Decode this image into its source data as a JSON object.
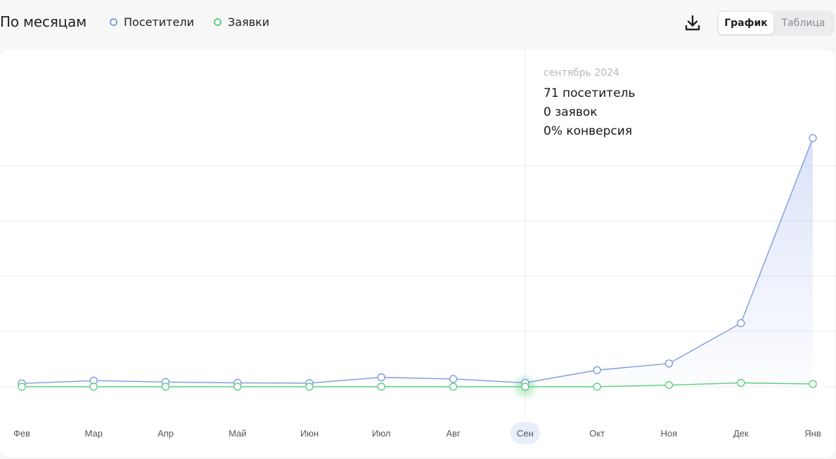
{
  "header": {
    "title": "По месяцам",
    "legend": [
      {
        "label": "Посетители",
        "color": "#7f9cde"
      },
      {
        "label": "Заявки",
        "color": "#5fcf7f"
      }
    ],
    "download_icon": "download-icon",
    "view_toggle": {
      "options": [
        "График",
        "Таблица"
      ],
      "selected": "График"
    }
  },
  "tooltip": {
    "date": "сентябрь 2024",
    "visitors": "71 посетитель",
    "requests": "0 заявок",
    "conversion": "0% конверсия"
  },
  "chart_data": {
    "type": "line",
    "categories": [
      "Фев",
      "Мар",
      "Апр",
      "Май",
      "Июн",
      "Июл",
      "Авг",
      "Сен",
      "Окт",
      "Ноя",
      "Дек",
      "Янв"
    ],
    "highlighted_category": "Сен",
    "series": [
      {
        "name": "Посетители",
        "color": "#7f9cde",
        "values": [
          60,
          110,
          85,
          70,
          65,
          170,
          140,
          71,
          300,
          420,
          1150,
          4500
        ]
      },
      {
        "name": "Заявки",
        "color": "#5fcf7f",
        "values": [
          0,
          0,
          0,
          0,
          0,
          0,
          0,
          0,
          0,
          30,
          70,
          50
        ]
      }
    ],
    "ylim": [
      0,
      5500
    ],
    "grid": true,
    "gridlines": [
      0,
      1000,
      2000,
      3000,
      4000
    ]
  }
}
